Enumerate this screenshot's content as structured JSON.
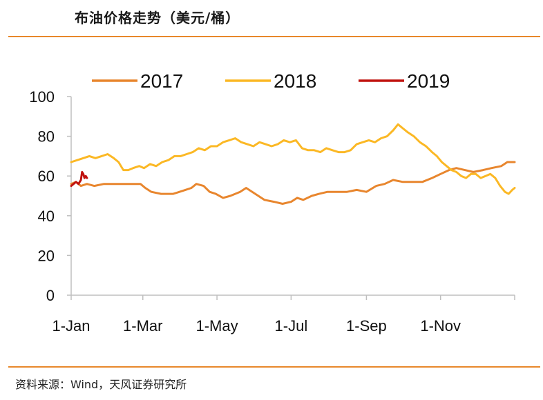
{
  "header": {
    "title": "布油价格走势（美元/桶）"
  },
  "footer": {
    "source": "资料来源：Wind，天风证券研究所"
  },
  "chart_data": {
    "type": "line",
    "title": "布油价格走势（美元/桶）",
    "xlabel": "",
    "ylabel": "",
    "ylim": [
      0,
      100
    ],
    "yticks": [
      0,
      20,
      40,
      60,
      80,
      100
    ],
    "xlim": [
      1,
      366
    ],
    "xticks": [
      {
        "day": 1,
        "label": "1-Jan"
      },
      {
        "day": 60,
        "label": "1-Mar"
      },
      {
        "day": 121,
        "label": "1-May"
      },
      {
        "day": 182,
        "label": "1-Jul"
      },
      {
        "day": 244,
        "label": "1-Sep"
      },
      {
        "day": 305,
        "label": "1-Nov"
      }
    ],
    "legend_position": "top",
    "grid": false,
    "series": [
      {
        "name": "2017",
        "color": "#e8862e",
        "points": [
          [
            1,
            56
          ],
          [
            5,
            57
          ],
          [
            9,
            55
          ],
          [
            14,
            56
          ],
          [
            20,
            55
          ],
          [
            28,
            56
          ],
          [
            36,
            56
          ],
          [
            45,
            56
          ],
          [
            52,
            56
          ],
          [
            58,
            56
          ],
          [
            62,
            54
          ],
          [
            67,
            52
          ],
          [
            75,
            51
          ],
          [
            85,
            51
          ],
          [
            95,
            53
          ],
          [
            100,
            54
          ],
          [
            104,
            56
          ],
          [
            110,
            55
          ],
          [
            115,
            52
          ],
          [
            120,
            51
          ],
          [
            126,
            49
          ],
          [
            132,
            50
          ],
          [
            140,
            52
          ],
          [
            145,
            54
          ],
          [
            150,
            52
          ],
          [
            155,
            50
          ],
          [
            160,
            48
          ],
          [
            168,
            47
          ],
          [
            175,
            46
          ],
          [
            182,
            47
          ],
          [
            187,
            49
          ],
          [
            192,
            48
          ],
          [
            199,
            50
          ],
          [
            205,
            51
          ],
          [
            212,
            52
          ],
          [
            220,
            52
          ],
          [
            228,
            52
          ],
          [
            236,
            53
          ],
          [
            244,
            52
          ],
          [
            252,
            55
          ],
          [
            259,
            56
          ],
          [
            266,
            58
          ],
          [
            274,
            57
          ],
          [
            282,
            57
          ],
          [
            290,
            57
          ],
          [
            298,
            59
          ],
          [
            305,
            61
          ],
          [
            312,
            63
          ],
          [
            318,
            64
          ],
          [
            325,
            63
          ],
          [
            332,
            62
          ],
          [
            340,
            63
          ],
          [
            347,
            64
          ],
          [
            355,
            65
          ],
          [
            360,
            67
          ],
          [
            366,
            67
          ]
        ]
      },
      {
        "name": "2018",
        "color": "#fbb825",
        "points": [
          [
            1,
            67
          ],
          [
            6,
            68
          ],
          [
            11,
            69
          ],
          [
            16,
            70
          ],
          [
            21,
            69
          ],
          [
            26,
            70
          ],
          [
            31,
            71
          ],
          [
            36,
            69
          ],
          [
            40,
            67
          ],
          [
            44,
            63
          ],
          [
            48,
            63
          ],
          [
            52,
            64
          ],
          [
            57,
            65
          ],
          [
            61,
            64
          ],
          [
            66,
            66
          ],
          [
            71,
            65
          ],
          [
            76,
            67
          ],
          [
            81,
            68
          ],
          [
            86,
            70
          ],
          [
            91,
            70
          ],
          [
            96,
            71
          ],
          [
            101,
            72
          ],
          [
            106,
            74
          ],
          [
            111,
            73
          ],
          [
            116,
            75
          ],
          [
            121,
            75
          ],
          [
            126,
            77
          ],
          [
            131,
            78
          ],
          [
            136,
            79
          ],
          [
            141,
            77
          ],
          [
            146,
            76
          ],
          [
            151,
            75
          ],
          [
            156,
            77
          ],
          [
            161,
            76
          ],
          [
            166,
            75
          ],
          [
            171,
            76
          ],
          [
            176,
            78
          ],
          [
            181,
            77
          ],
          [
            186,
            78
          ],
          [
            191,
            74
          ],
          [
            196,
            73
          ],
          [
            201,
            73
          ],
          [
            206,
            72
          ],
          [
            211,
            74
          ],
          [
            216,
            73
          ],
          [
            221,
            72
          ],
          [
            226,
            72
          ],
          [
            231,
            73
          ],
          [
            236,
            76
          ],
          [
            241,
            77
          ],
          [
            246,
            78
          ],
          [
            251,
            77
          ],
          [
            256,
            79
          ],
          [
            261,
            80
          ],
          [
            266,
            83
          ],
          [
            270,
            86
          ],
          [
            274,
            84
          ],
          [
            278,
            82
          ],
          [
            283,
            80
          ],
          [
            288,
            77
          ],
          [
            293,
            75
          ],
          [
            298,
            72
          ],
          [
            302,
            70
          ],
          [
            306,
            67
          ],
          [
            310,
            65
          ],
          [
            314,
            63
          ],
          [
            318,
            62
          ],
          [
            322,
            60
          ],
          [
            326,
            59
          ],
          [
            330,
            61
          ],
          [
            334,
            61
          ],
          [
            338,
            59
          ],
          [
            342,
            60
          ],
          [
            346,
            61
          ],
          [
            350,
            59
          ],
          [
            354,
            55
          ],
          [
            358,
            52
          ],
          [
            361,
            51
          ],
          [
            364,
            53
          ],
          [
            366,
            54
          ]
        ]
      },
      {
        "name": "2019",
        "color": "#c0130f",
        "points": [
          [
            1,
            55
          ],
          [
            3,
            56
          ],
          [
            5,
            57
          ],
          [
            7,
            56
          ],
          [
            9,
            58
          ],
          [
            10,
            62
          ],
          [
            11,
            61
          ],
          [
            12,
            59
          ],
          [
            13,
            60
          ],
          [
            14,
            59
          ]
        ]
      }
    ]
  }
}
